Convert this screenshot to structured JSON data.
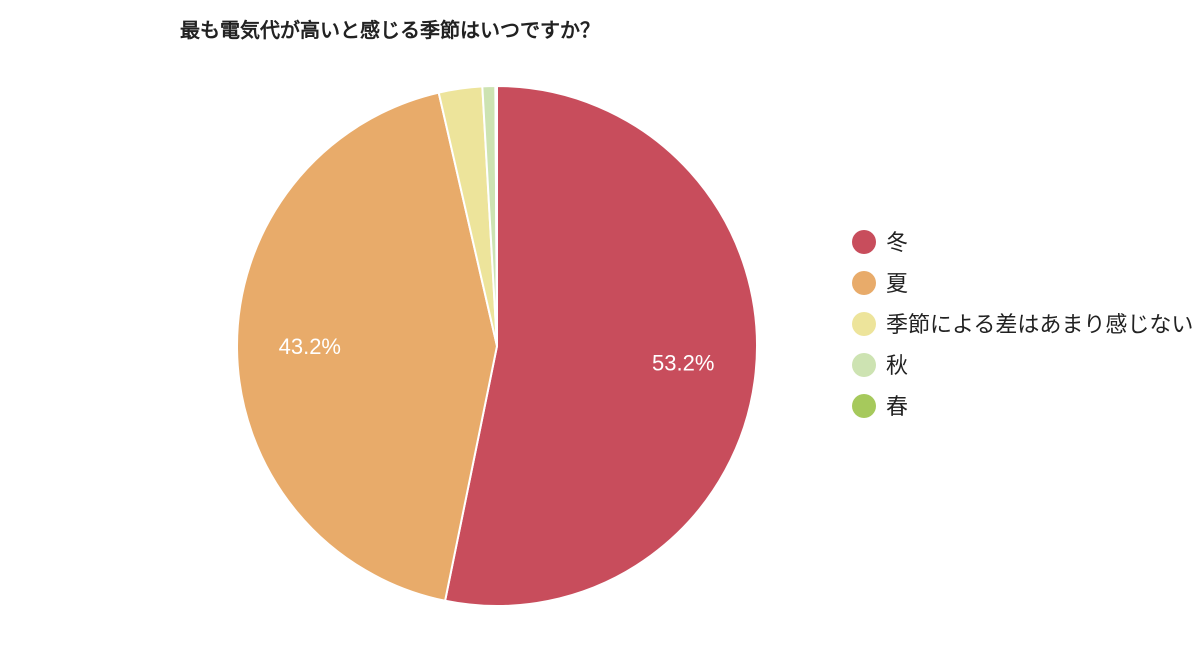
{
  "chart_data": {
    "type": "pie",
    "title": "最も電気代が高いと感じる季節はいつですか？",
    "slices": [
      {
        "label": "冬",
        "value": 53.2,
        "color": "#c84d5c",
        "data_label": "53.2%"
      },
      {
        "label": "夏",
        "value": 43.2,
        "color": "#e8ab6a",
        "data_label": "43.2%"
      },
      {
        "label": "季節による差はあまり感じない",
        "value": 2.7,
        "color": "#ede49b",
        "data_label": ""
      },
      {
        "label": "秋",
        "value": 0.8,
        "color": "#cde3b2",
        "data_label": ""
      },
      {
        "label": "春",
        "value": 0.1,
        "color": "#a6c95c",
        "data_label": ""
      }
    ],
    "legend_position": "right",
    "start_angle": "12 o'clock",
    "direction": "clockwise"
  }
}
